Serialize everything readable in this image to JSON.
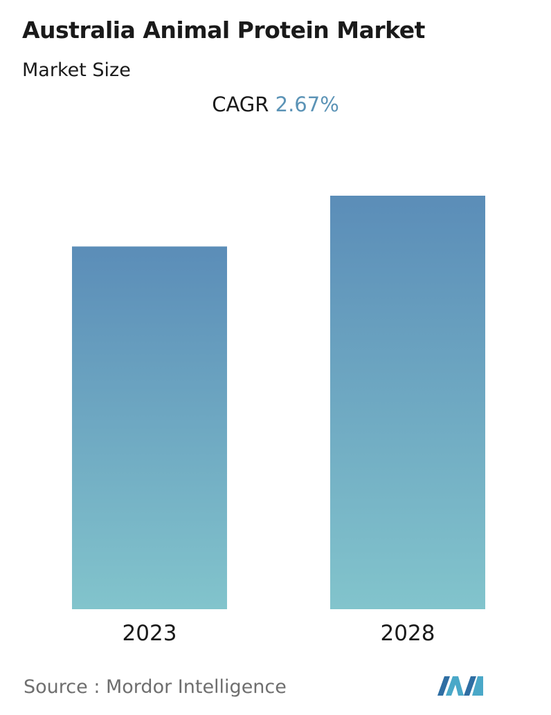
{
  "header": {
    "title": "Australia Animal Protein Market",
    "subtitle": "Market Size",
    "cagr_label": "CAGR",
    "cagr_value": "2.67%"
  },
  "chart_data": {
    "type": "bar",
    "categories": [
      "2023",
      "2028"
    ],
    "values": [
      100,
      114
    ],
    "ylim": [
      0,
      114
    ],
    "grid": false,
    "colors": {
      "bar_top": "#5b8db8",
      "bar_bottom": "#82c4cc"
    }
  },
  "footer": {
    "source": "Source :  Mordor Intelligence",
    "logo_icon": "mordor-intelligence-logo"
  }
}
